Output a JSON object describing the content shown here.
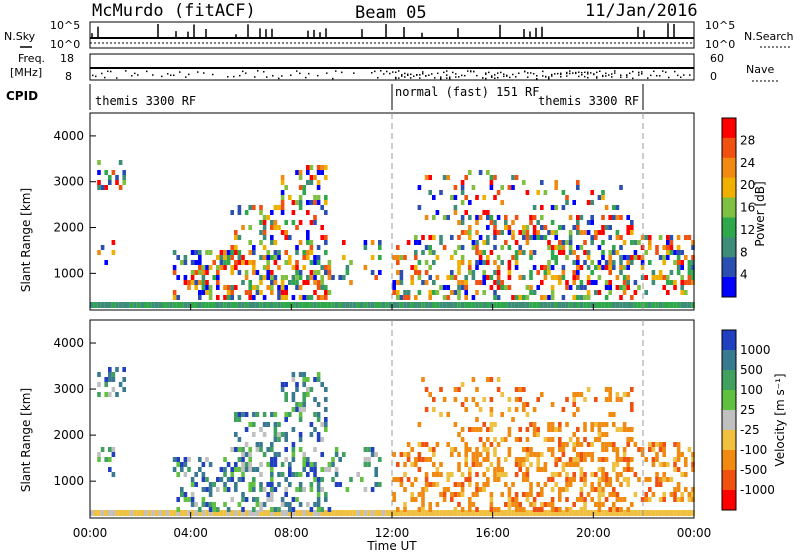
{
  "header": {
    "title": "McMurdo (fitACF)",
    "beam": "Beam 05",
    "date": "11/Jan/2016"
  },
  "top_panels": {
    "nsky_label": "N.Sky",
    "nsearch_label": "N.Search",
    "left_ticks_top": [
      "10^5",
      "10^0"
    ],
    "right_ticks_top": [
      "10^5",
      "10^0"
    ],
    "freq_label_line1": "Freq.",
    "freq_label_line2": "[MHz]",
    "freq_ticks": [
      "18",
      "8"
    ],
    "nave_label": "Nave",
    "nave_ticks": [
      "60",
      "0"
    ],
    "cpid_label": "CPID",
    "cpid_segments": [
      {
        "label": "themis 3300 RF",
        "start_hour": 0,
        "end_hour": 12
      },
      {
        "label": "normal (fast) 151 RF",
        "start_hour": 12,
        "end_hour": 22
      },
      {
        "label": "themis 3300 RF",
        "start_hour": 22,
        "end_hour": 24
      }
    ]
  },
  "x_axis": {
    "ticks": [
      "00:00",
      "04:00",
      "08:00",
      "12:00",
      "16:00",
      "20:00",
      "00:00"
    ],
    "label": "Time UT"
  },
  "colors": {
    "power": [
      "#0000ff",
      "#2a4fb0",
      "#3d8c78",
      "#2ea84a",
      "#80c040",
      "#f0b000",
      "#f08a10",
      "#f05010",
      "#ff0000"
    ],
    "velocity": [
      "#2040c0",
      "#3a7a90",
      "#40a060",
      "#60c040",
      "#c0c0c0",
      "#f0c040",
      "#f08a10",
      "#f05010",
      "#ff0000"
    ]
  },
  "chart_data": [
    {
      "type": "heatmap",
      "panel": "power",
      "ylabel": "Slant Range [km]",
      "y_ticks": [
        "1000",
        "2000",
        "3000",
        "4000"
      ],
      "ylim": [
        200,
        4500
      ],
      "x_range_hours": [
        0,
        24
      ],
      "colorbar_label": "Power [dB]",
      "colorbar_ticks": [
        "4",
        "8",
        "12",
        "16",
        "20",
        "24",
        "28"
      ]
    },
    {
      "type": "heatmap",
      "panel": "velocity",
      "ylabel": "Slant Range [km]",
      "y_ticks": [
        "1000",
        "2000",
        "3000",
        "4000"
      ],
      "ylim": [
        200,
        4500
      ],
      "x_range_hours": [
        0,
        24
      ],
      "colorbar_label": "Velocity [m s⁻¹]",
      "colorbar_ticks": [
        "1000",
        "500",
        "100",
        "25",
        "-25",
        "-100",
        "-500",
        "-1000"
      ]
    }
  ]
}
